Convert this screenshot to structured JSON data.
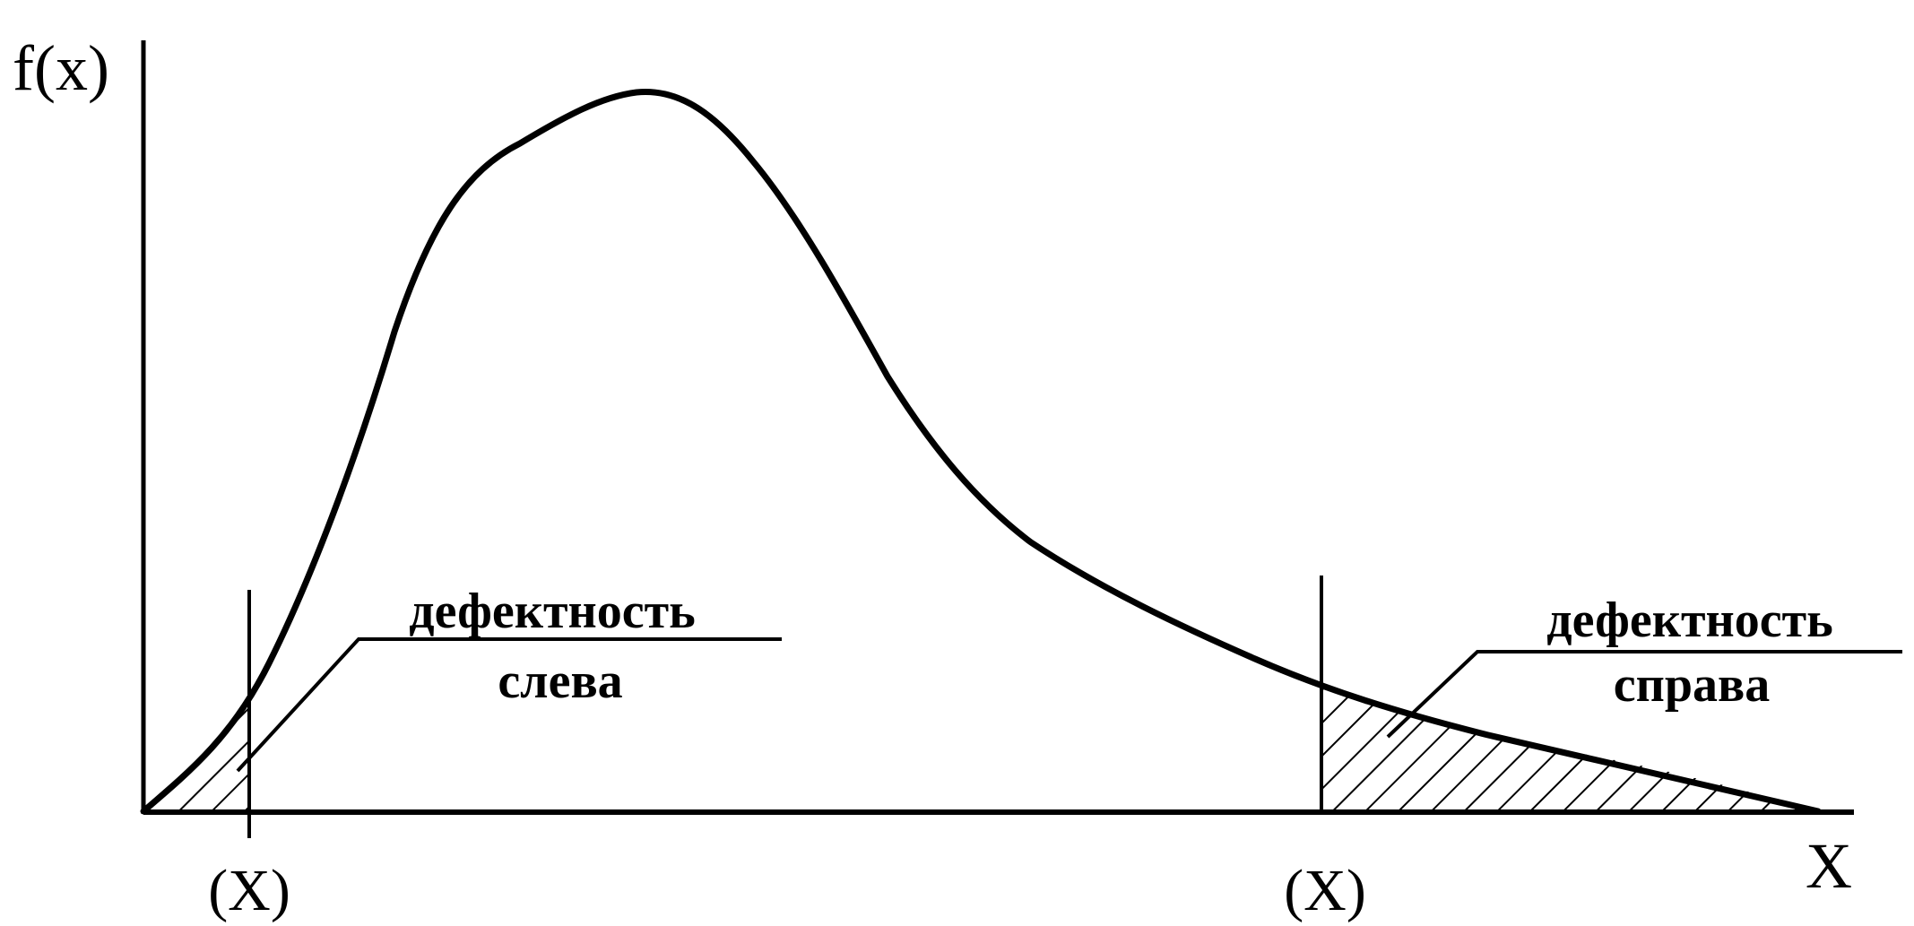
{
  "diagram": {
    "y_axis_label": "f(x)",
    "x_axis_label": "X",
    "left_limit_label": "(X)",
    "right_limit_label": "(X)",
    "left_note": {
      "line1": "дефектность",
      "line2": "слева"
    },
    "right_note": {
      "line1": "дефектность",
      "line2": "справа"
    }
  }
}
